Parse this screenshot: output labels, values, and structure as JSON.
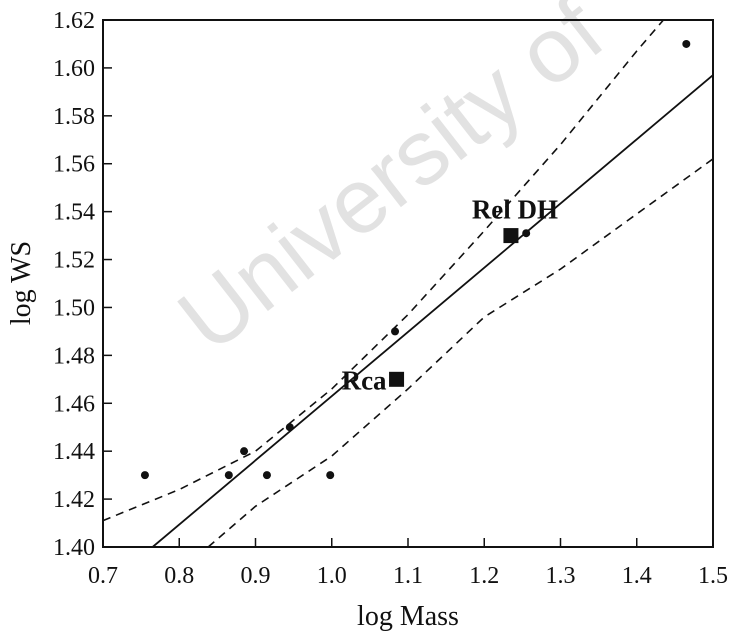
{
  "watermark": "University of",
  "chart_data": {
    "type": "scatter",
    "xlabel": "log Mass",
    "ylabel": "log WS",
    "xlim": [
      0.7,
      1.5
    ],
    "ylim": [
      1.4,
      1.62
    ],
    "xticks": [
      "0.7",
      "0.8",
      "0.9",
      "1.0",
      "1.1",
      "1.2",
      "1.3",
      "1.4",
      "1.5"
    ],
    "yticks": [
      "1.40",
      "1.42",
      "1.44",
      "1.46",
      "1.48",
      "1.50",
      "1.52",
      "1.54",
      "1.56",
      "1.58",
      "1.60",
      "1.62"
    ],
    "grid": false,
    "points": [
      {
        "x": 0.755,
        "y": 1.43
      },
      {
        "x": 0.865,
        "y": 1.43
      },
      {
        "x": 0.885,
        "y": 1.44
      },
      {
        "x": 0.915,
        "y": 1.43
      },
      {
        "x": 0.945,
        "y": 1.45
      },
      {
        "x": 0.998,
        "y": 1.43
      },
      {
        "x": 1.083,
        "y": 1.49
      },
      {
        "x": 1.255,
        "y": 1.531
      },
      {
        "x": 1.465,
        "y": 1.61
      }
    ],
    "highlighted_points": [
      {
        "x": 1.085,
        "y": 1.47,
        "label": "Rca"
      },
      {
        "x": 1.235,
        "y": 1.53,
        "label": "Rel DH"
      }
    ],
    "fit_line": [
      {
        "x": 0.765,
        "y": 1.4
      },
      {
        "x": 1.5,
        "y": 1.597
      }
    ],
    "upper_band": [
      {
        "x": 0.7,
        "y": 1.411
      },
      {
        "x": 0.8,
        "y": 1.424
      },
      {
        "x": 0.9,
        "y": 1.44
      },
      {
        "x": 1.0,
        "y": 1.466
      },
      {
        "x": 1.1,
        "y": 1.497
      },
      {
        "x": 1.2,
        "y": 1.532
      },
      {
        "x": 1.3,
        "y": 1.568
      },
      {
        "x": 1.4,
        "y": 1.607
      },
      {
        "x": 1.435,
        "y": 1.62
      }
    ],
    "lower_band": [
      {
        "x": 0.838,
        "y": 1.4
      },
      {
        "x": 0.9,
        "y": 1.417
      },
      {
        "x": 1.0,
        "y": 1.438
      },
      {
        "x": 1.1,
        "y": 1.466
      },
      {
        "x": 1.2,
        "y": 1.496
      },
      {
        "x": 1.3,
        "y": 1.516
      },
      {
        "x": 1.4,
        "y": 1.539
      },
      {
        "x": 1.5,
        "y": 1.562
      }
    ]
  }
}
